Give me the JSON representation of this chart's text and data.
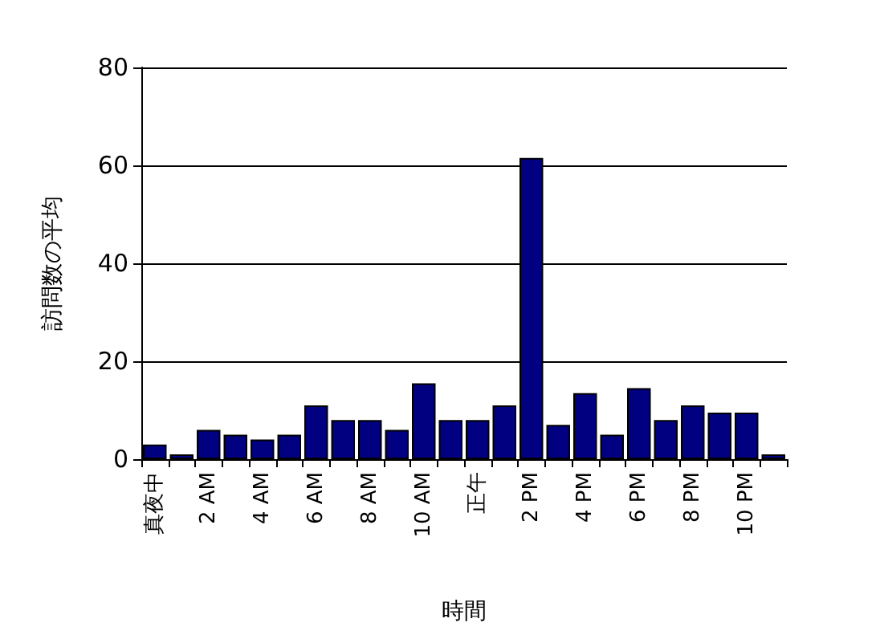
{
  "chart_data": {
    "type": "bar",
    "xlabel": "時間",
    "ylabel": "訪問数の平均",
    "categories": [
      "真夜中",
      null,
      "2 AM",
      null,
      "4 AM",
      null,
      "6 AM",
      null,
      "8 AM",
      null,
      "10 AM",
      null,
      "正午",
      null,
      "2 PM",
      null,
      "4 PM",
      null,
      "6 PM",
      null,
      "8 PM",
      null,
      "10 PM",
      null
    ],
    "values": [
      3,
      1,
      6,
      5,
      4,
      5,
      11,
      8,
      8,
      6,
      15.5,
      8,
      8,
      11,
      61.5,
      7,
      13.5,
      5,
      14.5,
      8,
      11,
      9.5,
      9.5,
      1
    ],
    "color": "#000080",
    "ylim": [
      0,
      80
    ],
    "yticks": [
      0,
      20,
      40,
      60,
      80
    ],
    "grid": "y"
  }
}
